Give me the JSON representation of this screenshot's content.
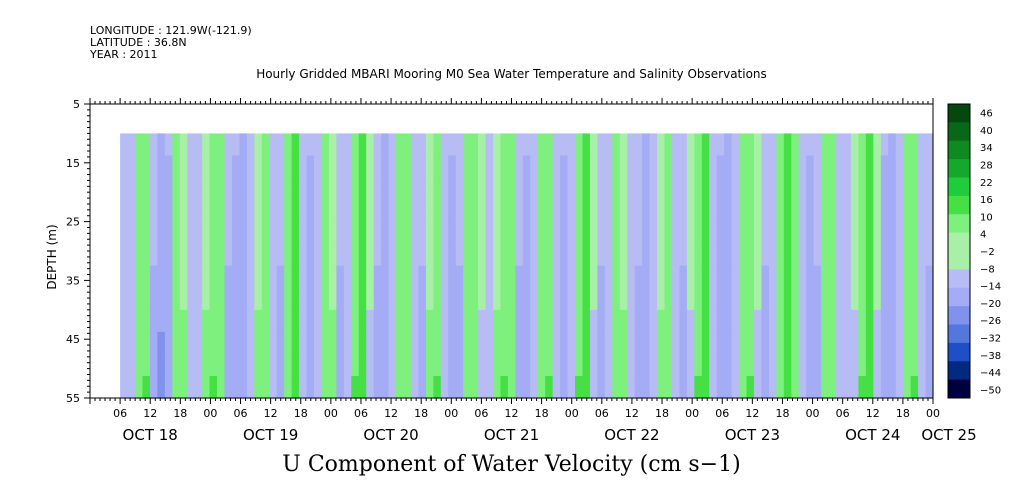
{
  "header": {
    "longitude": "LONGITUDE : 121.9W(-121.9)",
    "latitude": "LATITUDE : 36.8N",
    "year": "YEAR : 2011"
  },
  "chart_data": {
    "type": "heatmap",
    "title": "Hourly Gridded MBARI Mooring M0 Sea Water Temperature and Salinity Observations",
    "xlabel": "U Component of Water Velocity (cm s−1)",
    "ylabel": "DEPTH (m)",
    "y_ticks": [
      5,
      15,
      25,
      35,
      45,
      55
    ],
    "y_range": [
      5,
      55
    ],
    "y_reversed": true,
    "data_depth_range": [
      10,
      55
    ],
    "x_range_hours": [
      0,
      168
    ],
    "x_data_start_hour": 6,
    "x_hour_ticks": [
      "06",
      "12",
      "18",
      "00",
      "06",
      "12",
      "18",
      "00",
      "06",
      "12",
      "18",
      "00",
      "06",
      "12",
      "18",
      "00",
      "06",
      "12",
      "18",
      "00",
      "06",
      "12",
      "18",
      "00",
      "06",
      "12",
      "18",
      "00"
    ],
    "x_day_labels": [
      "OCT 18",
      "OCT 19",
      "OCT 20",
      "OCT 21",
      "OCT 22",
      "OCT 23",
      "OCT 24",
      "OCT 25"
    ],
    "colorbar": {
      "labels": [
        "46",
        "40",
        "34",
        "28",
        "22",
        "16",
        "10",
        "4",
        "−2",
        "−8",
        "−14",
        "−20",
        "−26",
        "−32",
        "−38",
        "−44",
        "−50"
      ],
      "range": [
        -50,
        50
      ],
      "colors": [
        "#000040",
        "#002a80",
        "#1e4fc6",
        "#5377dd",
        "#8092ec",
        "#a3acf4",
        "#b7bdf4",
        "#a8f0a8",
        "#7ef07e",
        "#44e044",
        "#1ecc3c",
        "#14a82c",
        "#0e8a20",
        "#086818",
        "#044810"
      ]
    },
    "columns_velocity_upper": [
      -6,
      -4,
      4,
      8,
      -8,
      -12,
      -10,
      6,
      2,
      -4,
      -6,
      2,
      8,
      4,
      -8,
      -10,
      -12,
      -4,
      2,
      6,
      -6,
      -8,
      6,
      10,
      -4,
      -10,
      -6,
      4,
      2,
      -8,
      -4,
      8,
      10,
      -2,
      -8,
      -12,
      -6,
      4,
      6,
      -4,
      -8,
      2,
      8,
      -6,
      -10,
      -8,
      4,
      6,
      -2,
      -6,
      2,
      8,
      4,
      -8,
      -10,
      -4,
      6,
      8,
      -6,
      -10,
      -4,
      8,
      10,
      -2,
      -8,
      -6,
      4,
      2,
      -4,
      -8,
      -12,
      -6,
      2,
      6,
      -4,
      -8,
      -2,
      8,
      10,
      -6,
      -10,
      -12,
      -4,
      6,
      8,
      -2,
      -8,
      -4,
      4,
      10,
      6,
      -6,
      -10,
      -8,
      4,
      6,
      -4,
      -6,
      -2,
      8,
      10,
      -2,
      -10,
      -12,
      -6,
      6,
      8,
      -4,
      -8
    ],
    "columns_velocity_lower": [
      -10,
      -8,
      6,
      10,
      -12,
      -18,
      -14,
      8,
      4,
      -6,
      -10,
      4,
      10,
      6,
      -12,
      -14,
      -16,
      -6,
      4,
      8,
      -10,
      -12,
      8,
      12,
      -6,
      -14,
      -10,
      6,
      4,
      -12,
      -6,
      10,
      12,
      -4,
      -12,
      -16,
      -10,
      6,
      8,
      -6,
      -12,
      4,
      10,
      -10,
      -14,
      -12,
      6,
      8,
      -4,
      -10,
      4,
      10,
      6,
      -12,
      -14,
      -6,
      8,
      10,
      -10,
      -14,
      -6,
      10,
      12,
      -4,
      -12,
      -10,
      6,
      4,
      -6,
      -12,
      -16,
      -10,
      4,
      8,
      -6,
      -12,
      -4,
      10,
      12,
      -10,
      -14,
      -16,
      -6,
      8,
      10,
      -4,
      -12,
      -6,
      6,
      12,
      8,
      -10,
      -14,
      -12,
      6,
      8,
      -6,
      -10,
      -4,
      10,
      12,
      -4,
      -14,
      -16,
      -10,
      8,
      10,
      -6,
      -12
    ]
  }
}
